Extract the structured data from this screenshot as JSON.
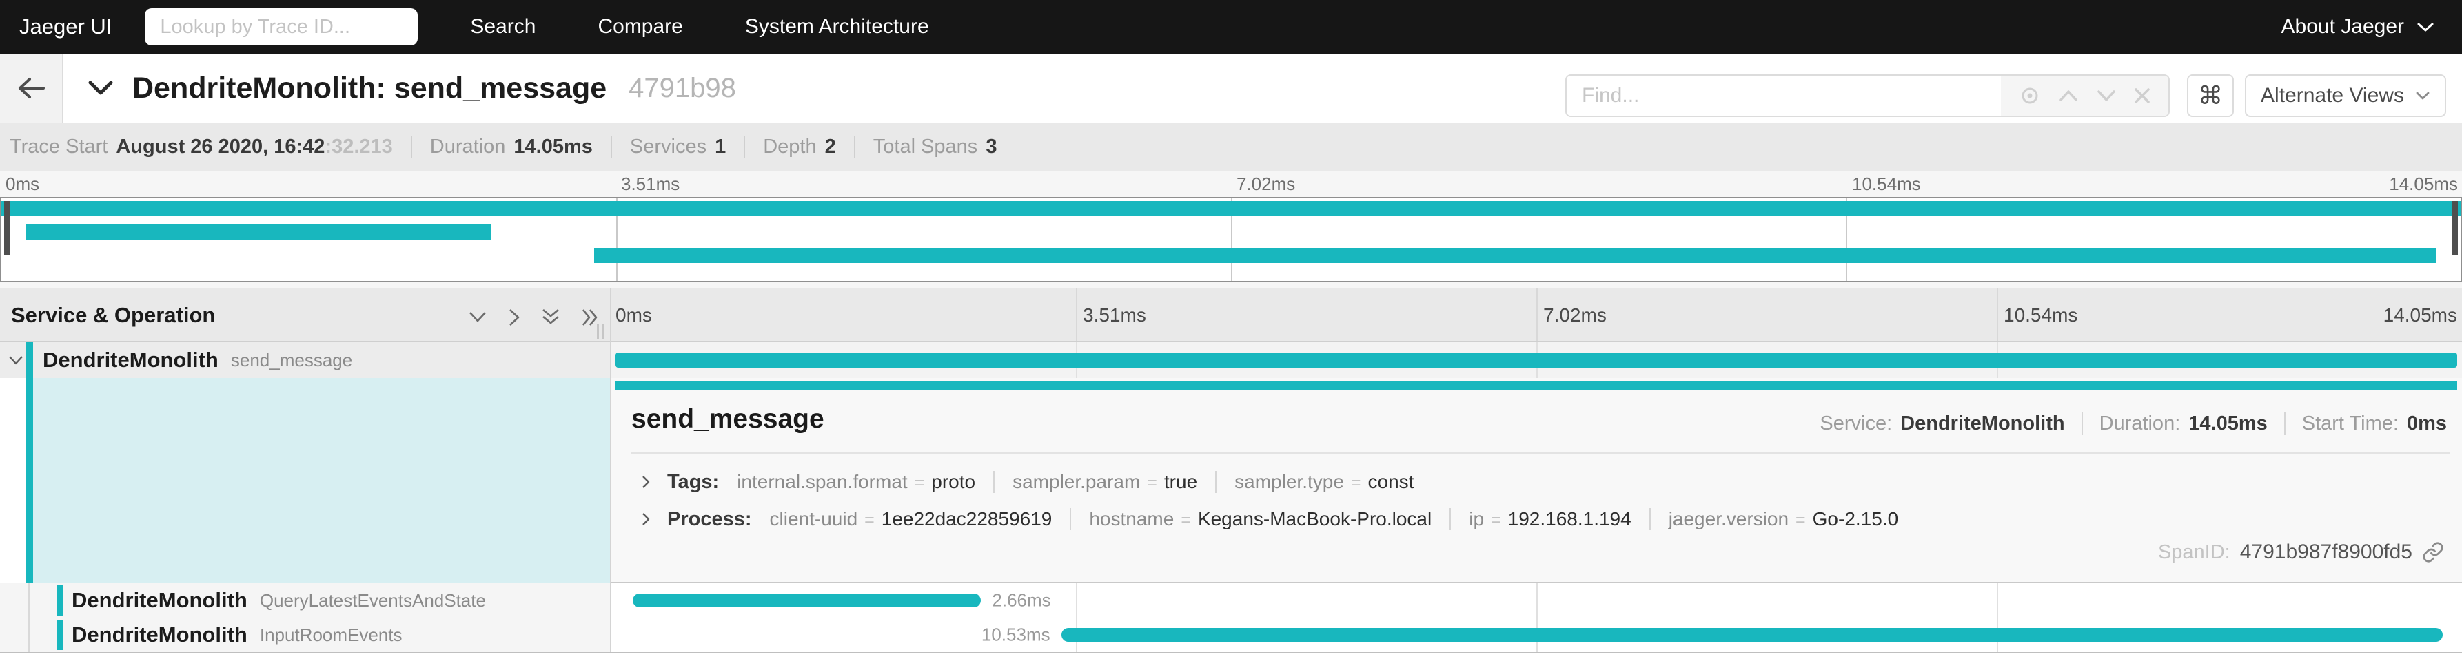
{
  "accent_color": "#18b7be",
  "glyphs": {
    "eq": "=",
    "command": "⌘"
  },
  "navbar": {
    "brand": "Jaeger UI",
    "lookup_placeholder": "Lookup by Trace ID...",
    "links": [
      {
        "label": "Search"
      },
      {
        "label": "Compare"
      },
      {
        "label": "System Architecture"
      }
    ],
    "about_label": "About Jaeger"
  },
  "trace_header": {
    "title": "DendriteMonolith: send_message",
    "trace_id": "4791b98",
    "find_placeholder": "Find...",
    "alternate_views_label": "Alternate Views"
  },
  "trace_meta": {
    "items": [
      {
        "label": "Trace Start",
        "value": "August 26 2020, 16:42",
        "suffix": ":32.213"
      },
      {
        "label": "Duration",
        "value": "14.05ms"
      },
      {
        "label": "Services",
        "value": "1"
      },
      {
        "label": "Depth",
        "value": "2"
      },
      {
        "label": "Total Spans",
        "value": "3"
      }
    ]
  },
  "minimap": {
    "ticks": [
      "0ms",
      "3.51ms",
      "7.02ms",
      "10.54ms",
      "14.05ms"
    ],
    "bars": [
      {
        "name": "send_message",
        "left_pct": 0,
        "width_pct": 100
      },
      {
        "name": "QueryLatestEventsAndState",
        "left_pct": 1.0,
        "width_pct": 18.9
      },
      {
        "name": "InputRoomEvents",
        "left_pct": 24.1,
        "width_pct": 74.9
      }
    ]
  },
  "span_table": {
    "header": "Service & Operation",
    "ticks": [
      "0ms",
      "3.51ms",
      "7.02ms",
      "10.54ms",
      "14.05ms"
    ],
    "spans": [
      {
        "service": "DendriteMonolith",
        "operation": "send_message",
        "duration": "14.05ms",
        "left_pct": 0,
        "width_pct": 100
      },
      {
        "service": "DendriteMonolith",
        "operation": "QueryLatestEventsAndState",
        "duration": "2.66ms",
        "left_pct": 0.95,
        "width_pct": 18.9
      },
      {
        "service": "DendriteMonolith",
        "operation": "InputRoomEvents",
        "duration": "10.53ms",
        "left_pct": 24.2,
        "width_pct": 75.0
      }
    ]
  },
  "span_detail": {
    "operation": "send_message",
    "meta": [
      {
        "label": "Service:",
        "value": "DendriteMonolith"
      },
      {
        "label": "Duration:",
        "value": "14.05ms"
      },
      {
        "label": "Start Time:",
        "value": "0ms"
      }
    ],
    "tags_label": "Tags:",
    "tags": [
      {
        "key": "internal.span.format",
        "value": "proto"
      },
      {
        "key": "sampler.param",
        "value": "true"
      },
      {
        "key": "sampler.type",
        "value": "const"
      }
    ],
    "process_label": "Process:",
    "process": [
      {
        "key": "client-uuid",
        "value": "1ee22dac22859619"
      },
      {
        "key": "hostname",
        "value": "Kegans-MacBook-Pro.local"
      },
      {
        "key": "ip",
        "value": "192.168.1.194"
      },
      {
        "key": "jaeger.version",
        "value": "Go-2.15.0"
      }
    ],
    "span_id_label": "SpanID:",
    "span_id": "4791b987f8900fd5"
  }
}
